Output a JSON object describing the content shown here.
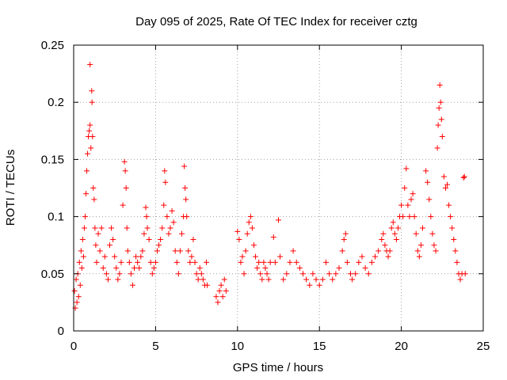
{
  "chart_data": {
    "type": "scatter",
    "title": "Day 095 of 2025, Rate Of TEC Index for receiver cztg",
    "xlabel": "GPS time / hours",
    "ylabel": "ROTI / TECUs",
    "xlim": [
      0,
      25
    ],
    "ylim": [
      0,
      0.25
    ],
    "xticks": [
      0,
      5,
      10,
      15,
      20,
      25
    ],
    "xtick_labels": [
      "0",
      "5",
      "10",
      "15",
      "20",
      "25"
    ],
    "yticks": [
      0,
      0.05,
      0.1,
      0.15,
      0.2,
      0.25
    ],
    "ytick_labels": [
      "0",
      "0.05",
      "0.1",
      "0.15",
      "0.2",
      "0.25"
    ],
    "grid": true,
    "marker": "+",
    "color": "#ff0000",
    "series": [
      {
        "name": "ROTI",
        "points": [
          [
            0.05,
            0.035
          ],
          [
            0.1,
            0.02
          ],
          [
            0.15,
            0.045
          ],
          [
            0.2,
            0.025
          ],
          [
            0.25,
            0.05
          ],
          [
            0.3,
            0.03
          ],
          [
            0.35,
            0.06
          ],
          [
            0.4,
            0.04
          ],
          [
            0.45,
            0.07
          ],
          [
            0.5,
            0.055
          ],
          [
            0.55,
            0.08
          ],
          [
            0.6,
            0.065
          ],
          [
            0.65,
            0.09
          ],
          [
            0.7,
            0.1
          ],
          [
            0.75,
            0.12
          ],
          [
            0.8,
            0.14
          ],
          [
            0.85,
            0.155
          ],
          [
            0.9,
            0.17
          ],
          [
            0.95,
            0.175
          ],
          [
            1.0,
            0.18
          ],
          [
            1.0,
            0.233
          ],
          [
            1.05,
            0.16
          ],
          [
            1.1,
            0.21
          ],
          [
            1.12,
            0.2
          ],
          [
            1.15,
            0.17
          ],
          [
            1.2,
            0.125
          ],
          [
            1.25,
            0.115
          ],
          [
            1.3,
            0.09
          ],
          [
            1.35,
            0.075
          ],
          [
            1.4,
            0.06
          ],
          [
            1.5,
            0.085
          ],
          [
            1.6,
            0.07
          ],
          [
            1.7,
            0.09
          ],
          [
            1.8,
            0.055
          ],
          [
            1.9,
            0.065
          ],
          [
            2.0,
            0.05
          ],
          [
            2.1,
            0.045
          ],
          [
            2.2,
            0.075
          ],
          [
            2.3,
            0.09
          ],
          [
            2.4,
            0.08
          ],
          [
            2.5,
            0.065
          ],
          [
            2.6,
            0.055
          ],
          [
            2.7,
            0.045
          ],
          [
            2.8,
            0.05
          ],
          [
            2.9,
            0.06
          ],
          [
            3.0,
            0.11
          ],
          [
            3.1,
            0.148
          ],
          [
            3.15,
            0.14
          ],
          [
            3.2,
            0.125
          ],
          [
            3.25,
            0.09
          ],
          [
            3.3,
            0.07
          ],
          [
            3.4,
            0.06
          ],
          [
            3.5,
            0.05
          ],
          [
            3.6,
            0.04
          ],
          [
            3.7,
            0.055
          ],
          [
            3.8,
            0.065
          ],
          [
            3.9,
            0.06
          ],
          [
            4.0,
            0.055
          ],
          [
            4.1,
            0.065
          ],
          [
            4.2,
            0.07
          ],
          [
            4.3,
            0.085
          ],
          [
            4.4,
            0.108
          ],
          [
            4.45,
            0.1
          ],
          [
            4.5,
            0.09
          ],
          [
            4.6,
            0.08
          ],
          [
            4.7,
            0.06
          ],
          [
            4.8,
            0.05
          ],
          [
            4.9,
            0.055
          ],
          [
            5.0,
            0.06
          ],
          [
            5.1,
            0.07
          ],
          [
            5.2,
            0.075
          ],
          [
            5.3,
            0.08
          ],
          [
            5.4,
            0.09
          ],
          [
            5.5,
            0.11
          ],
          [
            5.55,
            0.14
          ],
          [
            5.6,
            0.13
          ],
          [
            5.7,
            0.1
          ],
          [
            5.8,
            0.085
          ],
          [
            5.9,
            0.09
          ],
          [
            6.0,
            0.105
          ],
          [
            6.1,
            0.095
          ],
          [
            6.2,
            0.07
          ],
          [
            6.3,
            0.06
          ],
          [
            6.4,
            0.05
          ],
          [
            6.5,
            0.07
          ],
          [
            6.6,
            0.085
          ],
          [
            6.7,
            0.1
          ],
          [
            6.75,
            0.144
          ],
          [
            6.8,
            0.125
          ],
          [
            6.85,
            0.115
          ],
          [
            6.9,
            0.1
          ],
          [
            7.0,
            0.07
          ],
          [
            7.1,
            0.06
          ],
          [
            7.2,
            0.065
          ],
          [
            7.3,
            0.08
          ],
          [
            7.4,
            0.06
          ],
          [
            7.5,
            0.05
          ],
          [
            7.6,
            0.045
          ],
          [
            7.7,
            0.055
          ],
          [
            7.8,
            0.05
          ],
          [
            7.9,
            0.045
          ],
          [
            8.0,
            0.04
          ],
          [
            8.1,
            0.06
          ],
          [
            8.15,
            0.04
          ],
          [
            8.7,
            0.03
          ],
          [
            8.8,
            0.025
          ],
          [
            8.9,
            0.035
          ],
          [
            9.0,
            0.04
          ],
          [
            9.1,
            0.03
          ],
          [
            9.2,
            0.045
          ],
          [
            9.3,
            0.035
          ],
          [
            10.0,
            0.087
          ],
          [
            10.1,
            0.08
          ],
          [
            10.2,
            0.06
          ],
          [
            10.3,
            0.065
          ],
          [
            10.4,
            0.05
          ],
          [
            10.5,
            0.07
          ],
          [
            10.6,
            0.085
          ],
          [
            10.7,
            0.095
          ],
          [
            10.8,
            0.1
          ],
          [
            10.9,
            0.09
          ],
          [
            11.0,
            0.075
          ],
          [
            11.1,
            0.065
          ],
          [
            11.2,
            0.055
          ],
          [
            11.3,
            0.06
          ],
          [
            11.4,
            0.05
          ],
          [
            11.5,
            0.045
          ],
          [
            11.6,
            0.06
          ],
          [
            11.7,
            0.055
          ],
          [
            11.8,
            0.05
          ],
          [
            11.9,
            0.045
          ],
          [
            12.0,
            0.06
          ],
          [
            12.2,
            0.082
          ],
          [
            12.3,
            0.06
          ],
          [
            12.5,
            0.097
          ],
          [
            12.6,
            0.065
          ],
          [
            12.8,
            0.045
          ],
          [
            13.0,
            0.05
          ],
          [
            13.2,
            0.06
          ],
          [
            13.4,
            0.07
          ],
          [
            13.6,
            0.06
          ],
          [
            13.8,
            0.055
          ],
          [
            14.0,
            0.05
          ],
          [
            14.2,
            0.045
          ],
          [
            14.4,
            0.04
          ],
          [
            14.6,
            0.05
          ],
          [
            14.8,
            0.045
          ],
          [
            15.0,
            0.04
          ],
          [
            15.2,
            0.045
          ],
          [
            15.4,
            0.06
          ],
          [
            15.6,
            0.05
          ],
          [
            15.8,
            0.045
          ],
          [
            16.0,
            0.05
          ],
          [
            16.2,
            0.055
          ],
          [
            16.4,
            0.07
          ],
          [
            16.5,
            0.08
          ],
          [
            16.6,
            0.085
          ],
          [
            16.7,
            0.06
          ],
          [
            16.9,
            0.05
          ],
          [
            17.0,
            0.045
          ],
          [
            17.2,
            0.05
          ],
          [
            17.4,
            0.06
          ],
          [
            17.6,
            0.065
          ],
          [
            17.8,
            0.055
          ],
          [
            18.0,
            0.05
          ],
          [
            18.2,
            0.06
          ],
          [
            18.4,
            0.065
          ],
          [
            18.6,
            0.07
          ],
          [
            18.8,
            0.08
          ],
          [
            18.9,
            0.085
          ],
          [
            19.0,
            0.075
          ],
          [
            19.1,
            0.07
          ],
          [
            19.2,
            0.065
          ],
          [
            19.3,
            0.07
          ],
          [
            19.4,
            0.09
          ],
          [
            19.5,
            0.095
          ],
          [
            19.6,
            0.085
          ],
          [
            19.7,
            0.08
          ],
          [
            19.8,
            0.09
          ],
          [
            19.9,
            0.1
          ],
          [
            20.0,
            0.11
          ],
          [
            20.1,
            0.1
          ],
          [
            20.2,
            0.125
          ],
          [
            20.3,
            0.142
          ],
          [
            20.4,
            0.11
          ],
          [
            20.5,
            0.1
          ],
          [
            20.6,
            0.115
          ],
          [
            20.7,
            0.12
          ],
          [
            20.8,
            0.1
          ],
          [
            20.9,
            0.085
          ],
          [
            21.0,
            0.07
          ],
          [
            21.1,
            0.065
          ],
          [
            21.2,
            0.075
          ],
          [
            21.3,
            0.09
          ],
          [
            21.5,
            0.14
          ],
          [
            21.6,
            0.13
          ],
          [
            21.7,
            0.115
          ],
          [
            21.8,
            0.1
          ],
          [
            21.9,
            0.085
          ],
          [
            22.0,
            0.075
          ],
          [
            22.1,
            0.07
          ],
          [
            22.2,
            0.16
          ],
          [
            22.25,
            0.18
          ],
          [
            22.3,
            0.195
          ],
          [
            22.35,
            0.215
          ],
          [
            22.4,
            0.2
          ],
          [
            22.45,
            0.185
          ],
          [
            22.5,
            0.17
          ],
          [
            22.6,
            0.135
          ],
          [
            22.7,
            0.125
          ],
          [
            22.8,
            0.128
          ],
          [
            22.9,
            0.11
          ],
          [
            23.0,
            0.1
          ],
          [
            23.1,
            0.09
          ],
          [
            23.2,
            0.08
          ],
          [
            23.3,
            0.07
          ],
          [
            23.4,
            0.06
          ],
          [
            23.5,
            0.05
          ],
          [
            23.6,
            0.045
          ],
          [
            23.7,
            0.05
          ],
          [
            23.8,
            0.134
          ],
          [
            23.85,
            0.135
          ],
          [
            23.9,
            0.05
          ]
        ]
      }
    ]
  }
}
